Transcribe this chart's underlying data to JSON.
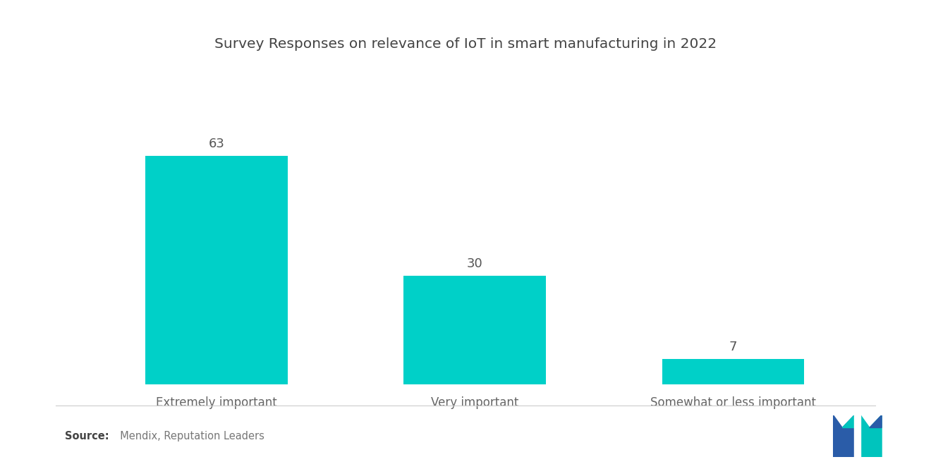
{
  "title": "Survey Responses on relevance of IoT in smart manufacturing in 2022",
  "categories": [
    "Extremely important",
    "Very important",
    "Somewhat or less important"
  ],
  "values": [
    63,
    30,
    7
  ],
  "bar_color": "#00D0C8",
  "background_color": "#ffffff",
  "title_fontsize": 14.5,
  "label_fontsize": 12,
  "value_fontsize": 13,
  "source_bold": "Source:",
  "source_rest": "  Mendix, Reputation Leaders",
  "ylim": [
    0,
    80
  ],
  "bar_positions": [
    0,
    1,
    2
  ],
  "bar_width": 0.55,
  "logo_blue": "#2A5CA8",
  "logo_teal": "#00C4BD"
}
